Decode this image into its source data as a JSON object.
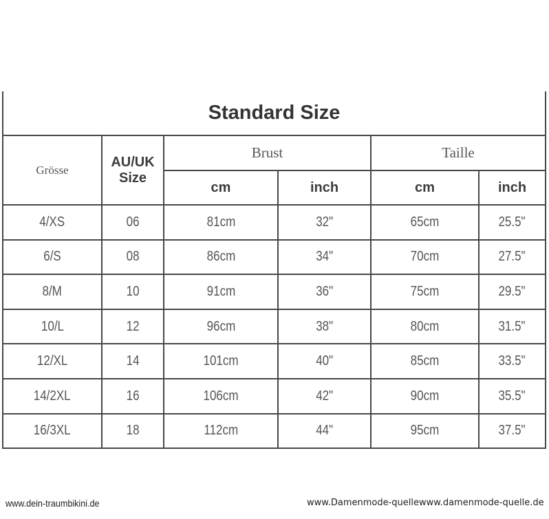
{
  "title": "Standard Size",
  "headers": {
    "groesse": "Grösse",
    "auuk_line1": "AU/UK",
    "auuk_line2": "Size",
    "brust": "Brust",
    "taille": "Taille",
    "cm": "cm",
    "inch": "inch"
  },
  "rows": [
    [
      "4/XS",
      "06",
      "81cm",
      "32\"",
      "65cm",
      "25.5\""
    ],
    [
      "6/S",
      "08",
      "86cm",
      "34\"",
      "70cm",
      "27.5\""
    ],
    [
      "8/M",
      "10",
      "91cm",
      "36\"",
      "75cm",
      "29.5\""
    ],
    [
      "10/L",
      "12",
      "96cm",
      "38\"",
      "80cm",
      "31.5\""
    ],
    [
      "12/XL",
      "14",
      "101cm",
      "40\"",
      "85cm",
      "33.5\""
    ],
    [
      "14/2XL",
      "16",
      "106cm",
      "42\"",
      "90cm",
      "35.5\""
    ],
    [
      "16/3XL",
      "18",
      "112cm",
      "44\"",
      "95cm",
      "37.5\""
    ]
  ],
  "watermarks": {
    "left": "www.dein-traumbikini.de",
    "right": "www.Damenmode-quellewww.damenmode-quelle.de"
  }
}
